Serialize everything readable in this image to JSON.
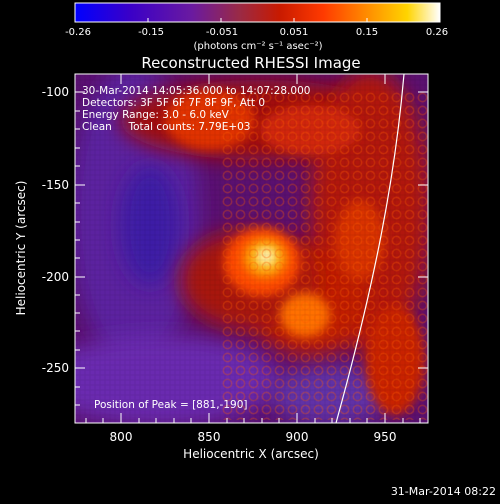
{
  "colorbar": {
    "tick_labels": [
      "-0.26",
      "-0.15",
      "-0.051",
      "0.051",
      "0.15",
      "0.26"
    ],
    "units_label": "(photons cm⁻² s⁻¹ asec⁻²)",
    "colors": [
      "#0000ff",
      "#3a00c8",
      "#6a1aa0",
      "#9a2a46",
      "#c81a00",
      "#ff3a00",
      "#ff8c00",
      "#ffd400",
      "#ffffff"
    ]
  },
  "image": {
    "title": "Reconstructed RHESSI Image",
    "info_lines": [
      "30-Mar-2014 14:05:36.000 to 14:07:28.000",
      "Detectors: 3F 5F 6F 7F 8F 9F, Att 0",
      "Energy Range: 3.0 - 6.0 keV",
      "Clean     Total counts: 7.79E+03"
    ],
    "peak_text": "Position of Peak = [881,-190]",
    "xlabel": "Heliocentric X (arcsec)",
    "ylabel": "Heliocentric Y (arcsec)",
    "x_ticks": [
      "800",
      "850",
      "900",
      "950"
    ],
    "y_ticks": [
      "-100",
      "-150",
      "-200",
      "-250"
    ],
    "xlim": [
      776,
      968
    ],
    "ylim": [
      -282,
      -90
    ],
    "peak": [
      881,
      -190
    ]
  },
  "footer": {
    "date": "31-Mar-2014 08:22"
  }
}
